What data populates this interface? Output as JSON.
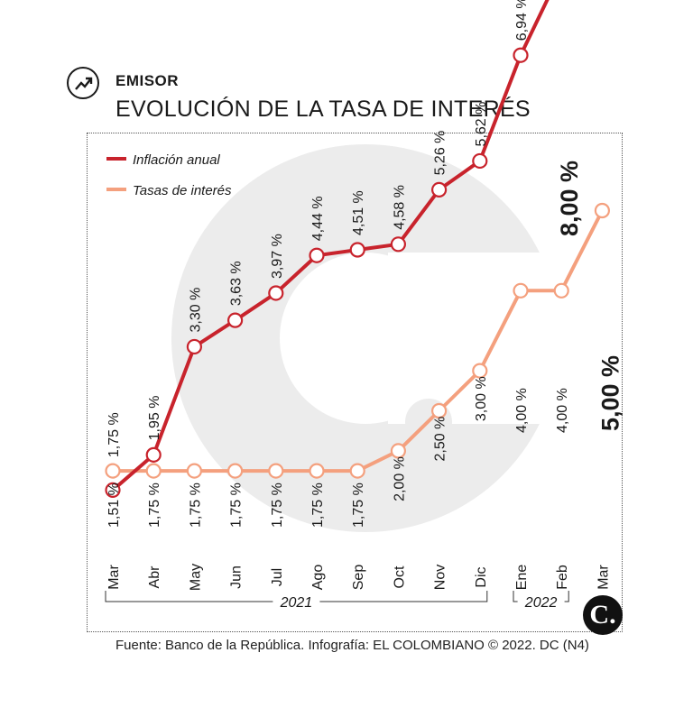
{
  "header": {
    "section_label": "EMISOR",
    "title": "EVOLUCIÓN DE LA TASA DE INTERÉS",
    "icon": "trend-up-icon"
  },
  "footer": {
    "source": "Fuente: Banco de la República. Infografía: EL COLOMBIANO © 2022. DC (N4)",
    "logo_text": "C."
  },
  "colors": {
    "inflation": "#c8232c",
    "rates": "#f4a07e",
    "watermark": "#ececec"
  },
  "chart_data": {
    "type": "line",
    "categories": [
      "Mar",
      "Abr",
      "May",
      "Jun",
      "Jul",
      "Ago",
      "Sep",
      "Oct",
      "Nov",
      "Dic",
      "Ene",
      "Feb",
      "Mar"
    ],
    "year_groups": [
      {
        "label": "2021",
        "from": 0,
        "to": 9
      },
      {
        "label": "2022",
        "from": 10,
        "to": 11
      }
    ],
    "series": [
      {
        "name": "Inflación anual",
        "values": [
          1.51,
          1.95,
          3.3,
          3.63,
          3.97,
          4.44,
          4.51,
          4.58,
          5.26,
          5.62,
          6.94,
          8.0,
          null
        ],
        "labels": [
          "1,51 %",
          "1,95 %",
          "3,30 %",
          "3,63 %",
          "3,97 %",
          "4,44 %",
          "4,51 %",
          "4,58 %",
          "5,26 %",
          "5,62 %",
          "6,94 %",
          "8,00 %",
          ""
        ]
      },
      {
        "name": "Tasas de interés",
        "values": [
          1.75,
          1.75,
          1.75,
          1.75,
          1.75,
          1.75,
          1.75,
          2.0,
          2.5,
          3.0,
          4.0,
          4.0,
          5.0
        ],
        "labels": [
          "1,75 %",
          "1,75 %",
          "1,75 %",
          "1,75 %",
          "1,75 %",
          "1,75 %",
          "1,75 %",
          "2,00 %",
          "2,50 %",
          "3,00 %",
          "4,00 %",
          "4,00 %",
          "5,00 %"
        ]
      }
    ],
    "legend_position": "top-left",
    "grid": false
  }
}
